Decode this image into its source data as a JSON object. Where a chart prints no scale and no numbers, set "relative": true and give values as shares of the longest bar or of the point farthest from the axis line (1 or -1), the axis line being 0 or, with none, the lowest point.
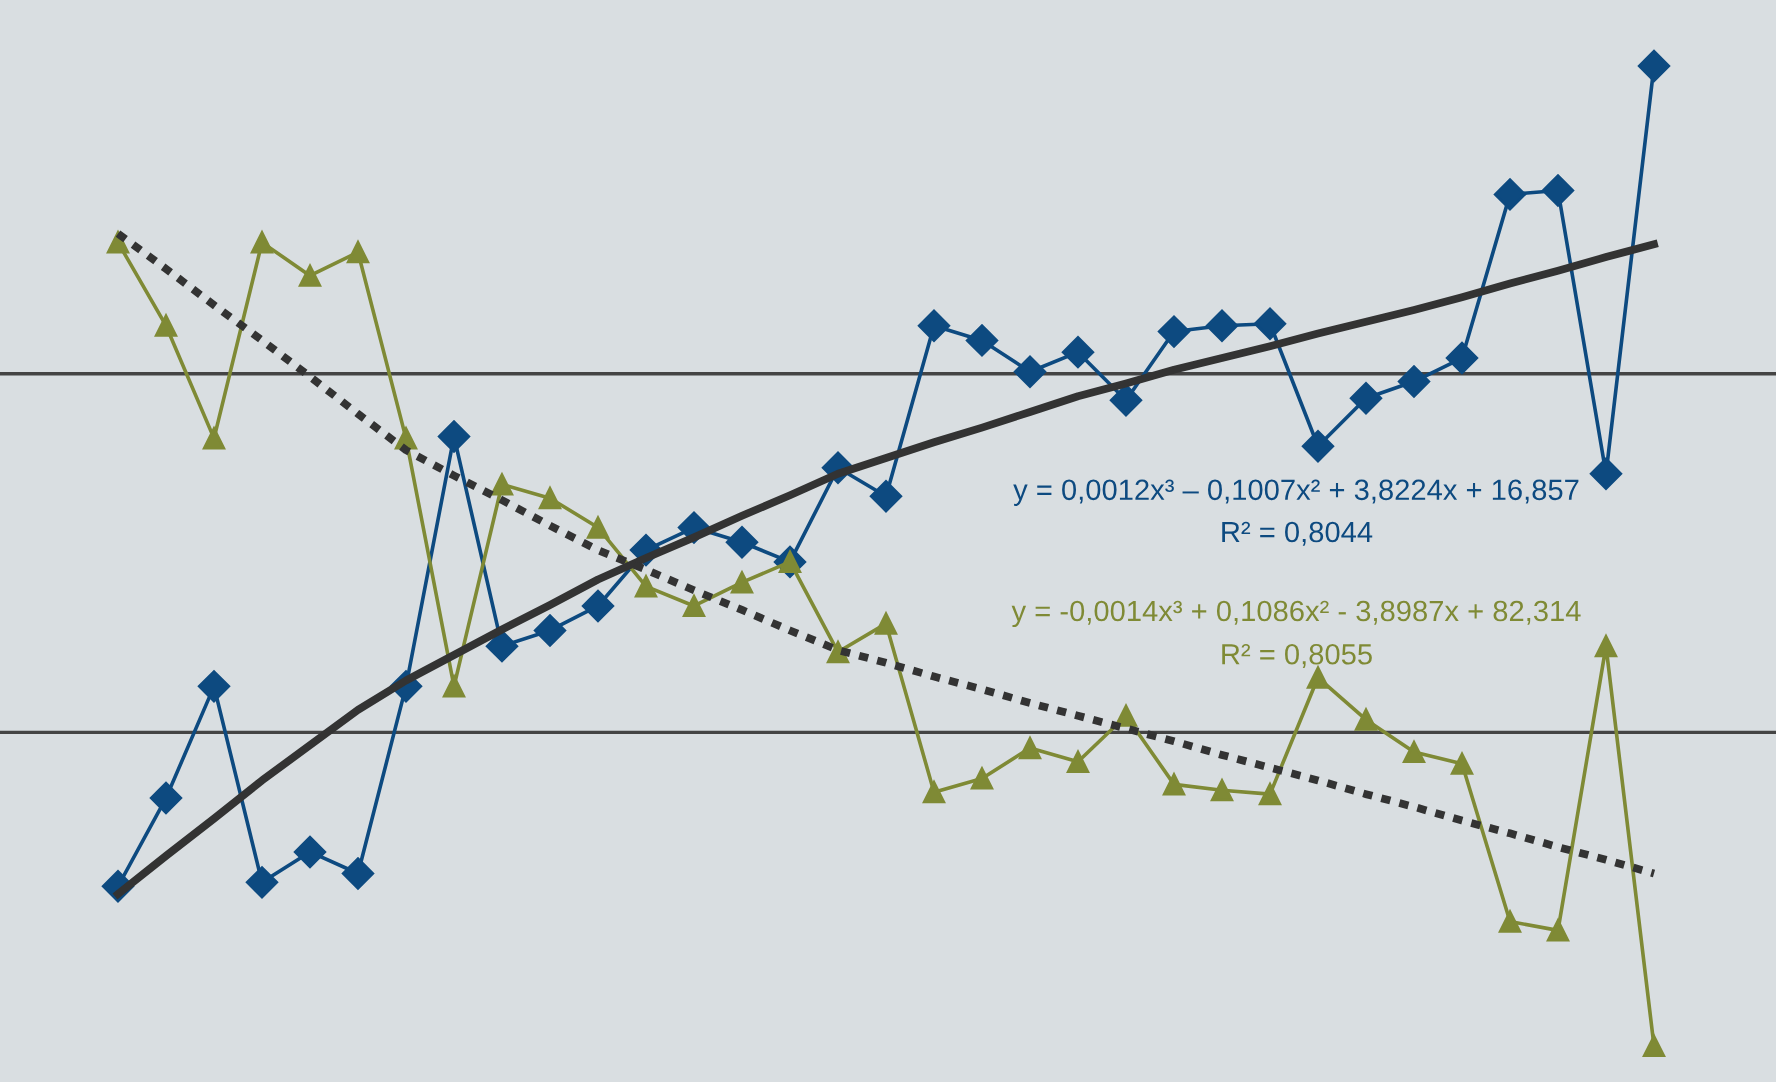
{
  "chart_data": {
    "type": "line",
    "relative": true,
    "categories": [
      null,
      null,
      null,
      null,
      null,
      null,
      null,
      null,
      null,
      null,
      null,
      null,
      null,
      null,
      null,
      null,
      null,
      null,
      null,
      null,
      null,
      null,
      null,
      null,
      null,
      null,
      null,
      null,
      null,
      null,
      null,
      null,
      null
    ],
    "series": [
      {
        "color": "#0d4a80",
        "marker": "diamond",
        "line_style": "solid",
        "values": [
          0.163,
          0.253,
          0.367,
          0.167,
          0.198,
          0.176,
          0.367,
          0.622,
          0.408,
          0.424,
          0.449,
          0.506,
          0.529,
          0.514,
          0.494,
          0.59,
          0.561,
          0.735,
          0.72,
          0.688,
          0.708,
          0.659,
          0.729,
          0.735,
          0.737,
          0.612,
          0.661,
          0.678,
          0.702,
          0.869,
          0.873,
          0.584,
          1
        ]
      },
      {
        "color": "#7f8a35",
        "marker": "triangle",
        "line_style": "solid",
        "values": [
          0.82,
          0.735,
          0.62,
          0.82,
          0.786,
          0.81,
          0.62,
          0.367,
          0.573,
          0.559,
          0.529,
          0.469,
          0.449,
          0.473,
          0.494,
          0.402,
          0.431,
          0.259,
          0.273,
          0.304,
          0.29,
          0.337,
          0.267,
          0.261,
          0.257,
          0.376,
          0.333,
          0.3,
          0.288,
          0.127,
          0.118,
          0.408,
          0
        ]
      },
      {
        "type": "line",
        "color": "#333333",
        "marker": "none",
        "line_style": "solid",
        "values": [
          0.155,
          0.194,
          0.232,
          0.271,
          0.307,
          0.343,
          0.373,
          0.399,
          0.425,
          0.45,
          0.476,
          0.498,
          0.519,
          0.541,
          0.562,
          0.584,
          0.6,
          0.616,
          0.631,
          0.647,
          0.663,
          0.676,
          0.69,
          0.702,
          0.714,
          0.727,
          0.739,
          0.751,
          0.764,
          0.778,
          0.791,
          0.805,
          0.818
        ]
      },
      {
        "type": "line",
        "color": "#333333",
        "marker": "none",
        "line_style": "dotted",
        "values": [
          0.829,
          0.793,
          0.756,
          0.72,
          0.683,
          0.645,
          0.608,
          0.582,
          0.557,
          0.531,
          0.506,
          0.486,
          0.465,
          0.445,
          0.424,
          0.404,
          0.391,
          0.377,
          0.364,
          0.35,
          0.337,
          0.324,
          0.311,
          0.297,
          0.284,
          0.271,
          0.257,
          0.244,
          0.23,
          0.217,
          0.203,
          0.19,
          0.176
        ]
      }
    ],
    "ref_lines": [
      {
        "axis": "y",
        "value": 0.686,
        "color": "#444444"
      },
      {
        "axis": "y",
        "value": 0.32,
        "color": "#444444"
      }
    ],
    "annotations": [
      "y = 0,0012x³ – 0,1007x² + 3,8224x + 16,857",
      "R² = 0,8044",
      "y = -0,0014x³ + 0,1086x² - 3,8987x + 82,314",
      "R² = 0,8055"
    ],
    "legend": false
  }
}
